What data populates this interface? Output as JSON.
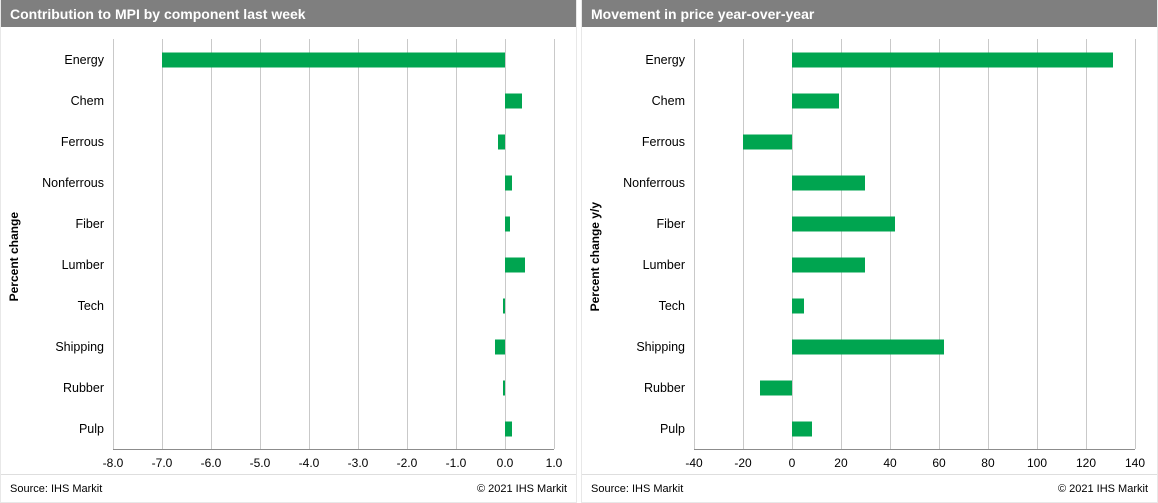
{
  "accent_color": "#00A550",
  "header_color": "#7f7f7f",
  "chart_data": [
    {
      "type": "bar",
      "orientation": "horizontal",
      "title": "Contribution to MPI by component last week",
      "ylabel": "Percent change",
      "categories": [
        "Energy",
        "Chem",
        "Ferrous",
        "Nonferrous",
        "Fiber",
        "Lumber",
        "Tech",
        "Shipping",
        "Rubber",
        "Pulp"
      ],
      "values": [
        -7.0,
        0.35,
        -0.15,
        0.15,
        0.1,
        0.4,
        -0.05,
        -0.2,
        -0.05,
        0.15
      ],
      "xlim": [
        -8,
        1
      ],
      "xticks": [
        -8,
        -7,
        -6,
        -5,
        -4,
        -3,
        -2,
        -1,
        0,
        1
      ],
      "xtick_labels": [
        "-8.0",
        "-7.0",
        "-6.0",
        "-5.0",
        "-4.0",
        "-3.0",
        "-2.0",
        "-1.0",
        "0.0",
        "1.0"
      ],
      "grid": true,
      "legend": false,
      "bar_color": "#00A550",
      "source": "Source:  IHS Markit",
      "copyright": "© 2021   IHS Markit"
    },
    {
      "type": "bar",
      "orientation": "horizontal",
      "title": "Movement in price year-over-year",
      "ylabel": "Percent change y/y",
      "categories": [
        "Energy",
        "Chem",
        "Ferrous",
        "Nonferrous",
        "Fiber",
        "Lumber",
        "Tech",
        "Shipping",
        "Rubber",
        "Pulp"
      ],
      "values": [
        131,
        19,
        -20,
        30,
        42,
        30,
        5,
        62,
        -13,
        8
      ],
      "xlim": [
        -40,
        140
      ],
      "xticks": [
        -40,
        -20,
        0,
        20,
        40,
        60,
        80,
        100,
        120,
        140
      ],
      "xtick_labels": [
        "-40",
        "-20",
        "0",
        "20",
        "40",
        "60",
        "80",
        "100",
        "120",
        "140"
      ],
      "grid": true,
      "legend": false,
      "bar_color": "#00A550",
      "source": "Source:  IHS Markit",
      "copyright": "© 2021   IHS Markit"
    }
  ]
}
